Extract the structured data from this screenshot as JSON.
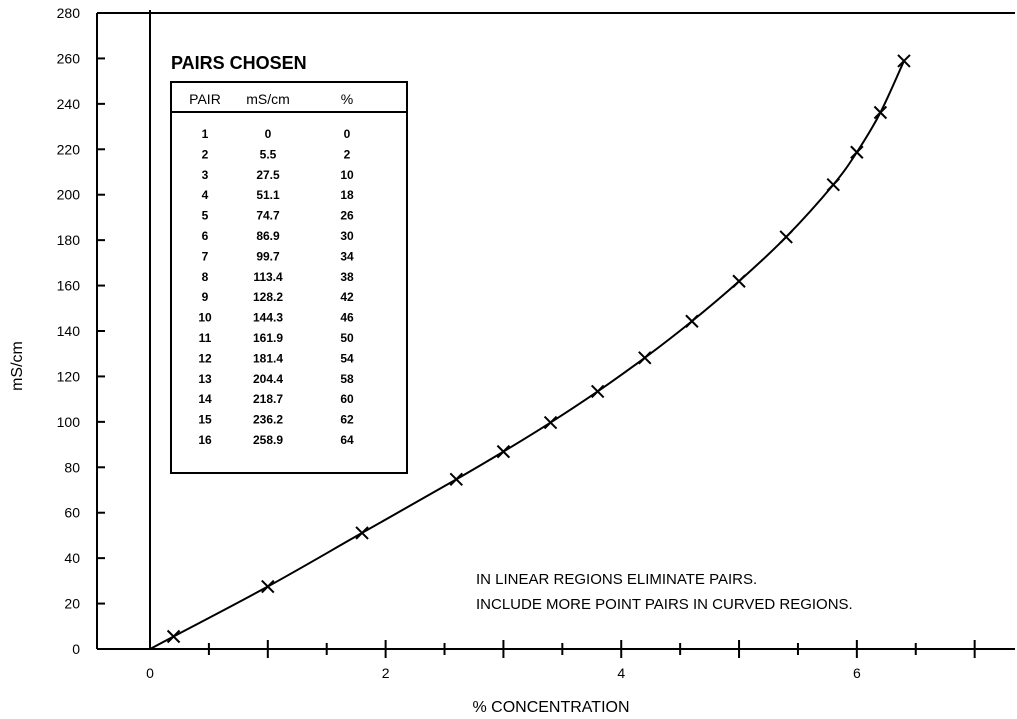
{
  "chart_data": {
    "type": "line",
    "xlabel": "% CONCENTRATION",
    "ylabel": "mS/cm",
    "xlim": [
      0,
      7.3
    ],
    "ylim": [
      0,
      280
    ],
    "x_ticks": [
      0,
      2,
      4,
      6
    ],
    "y_ticks": [
      0,
      20,
      40,
      60,
      80,
      100,
      120,
      140,
      160,
      180,
      200,
      220,
      240,
      260,
      280
    ],
    "grid": false,
    "series": [
      {
        "marker": "x",
        "points": [
          {
            "x": 0,
            "y": 0
          },
          {
            "x": 0.2,
            "y": 5.5
          },
          {
            "x": 1.0,
            "y": 27.5
          },
          {
            "x": 1.8,
            "y": 51.1
          },
          {
            "x": 2.6,
            "y": 74.7
          },
          {
            "x": 3.0,
            "y": 86.9
          },
          {
            "x": 3.4,
            "y": 99.7
          },
          {
            "x": 3.8,
            "y": 113.4
          },
          {
            "x": 4.2,
            "y": 128.2
          },
          {
            "x": 4.6,
            "y": 144.3
          },
          {
            "x": 5.0,
            "y": 161.9
          },
          {
            "x": 5.4,
            "y": 181.4
          },
          {
            "x": 5.8,
            "y": 204.4
          },
          {
            "x": 6.0,
            "y": 218.7
          },
          {
            "x": 6.2,
            "y": 236.2
          },
          {
            "x": 6.4,
            "y": 258.9
          }
        ]
      }
    ],
    "table": {
      "title": "PAIRS CHOSEN",
      "headers": [
        "PAIR",
        "mS/cm",
        "%"
      ],
      "rows": [
        [
          "1",
          "0",
          "0"
        ],
        [
          "2",
          "5.5",
          "2"
        ],
        [
          "3",
          "27.5",
          "10"
        ],
        [
          "4",
          "51.1",
          "18"
        ],
        [
          "5",
          "74.7",
          "26"
        ],
        [
          "6",
          "86.9",
          "30"
        ],
        [
          "7",
          "99.7",
          "34"
        ],
        [
          "8",
          "113.4",
          "38"
        ],
        [
          "9",
          "128.2",
          "42"
        ],
        [
          "10",
          "144.3",
          "46"
        ],
        [
          "11",
          "161.9",
          "50"
        ],
        [
          "12",
          "181.4",
          "54"
        ],
        [
          "13",
          "204.4",
          "58"
        ],
        [
          "14",
          "218.7",
          "60"
        ],
        [
          "15",
          "236.2",
          "62"
        ],
        [
          "16",
          "258.9",
          "64"
        ]
      ]
    },
    "annotations": [
      "IN LINEAR REGIONS ELIMINATE PAIRS.",
      "INCLUDE MORE POINT PAIRS IN CURVED REGIONS."
    ]
  }
}
